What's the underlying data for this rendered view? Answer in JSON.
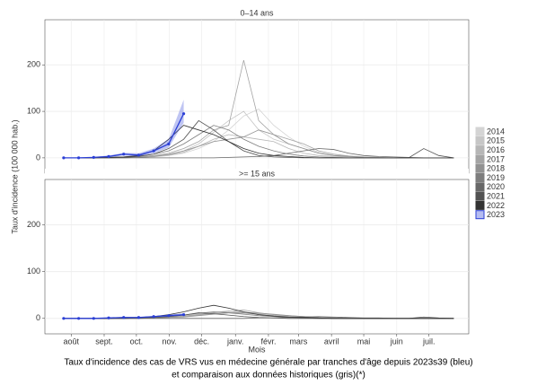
{
  "chart_data": [
    {
      "type": "line",
      "title": "0–14 ans",
      "ylabel": "Taux d'incidence (100 000 hab.)",
      "x": [
        -1,
        1,
        3,
        5,
        7,
        9,
        11,
        13,
        15,
        17,
        19,
        21,
        23,
        25,
        27,
        29,
        31,
        33,
        35,
        37,
        39,
        41,
        43,
        45,
        47,
        49,
        51
      ],
      "xlim": [
        -3.5,
        53
      ],
      "ylim": [
        -33,
        297
      ],
      "yticks": [
        0,
        100,
        200
      ],
      "grid": true,
      "series": [
        {
          "name": "2014",
          "color": "#d4d4d4",
          "values": [
            0,
            0,
            0,
            0,
            0,
            1,
            2,
            5,
            10,
            20,
            35,
            60,
            90,
            105,
            70,
            45,
            25,
            12,
            6,
            3,
            2,
            1,
            0,
            0,
            0,
            0,
            0
          ]
        },
        {
          "name": "2015",
          "color": "#c6c6c6",
          "values": [
            0,
            0,
            0,
            0,
            1,
            2,
            4,
            8,
            15,
            30,
            55,
            80,
            100,
            60,
            40,
            30,
            20,
            10,
            5,
            3,
            2,
            1,
            0,
            0,
            0,
            0,
            0
          ]
        },
        {
          "name": "2016",
          "color": "#b6b6b6",
          "values": [
            0,
            0,
            0,
            0,
            0,
            1,
            3,
            6,
            12,
            25,
            40,
            50,
            45,
            40,
            35,
            20,
            10,
            5,
            3,
            2,
            1,
            0,
            0,
            0,
            0,
            0,
            0
          ]
        },
        {
          "name": "2017",
          "color": "#a4a4a4",
          "values": [
            0,
            0,
            0,
            0,
            1,
            2,
            5,
            10,
            20,
            35,
            60,
            70,
            210,
            80,
            50,
            40,
            30,
            15,
            8,
            4,
            2,
            1,
            0,
            0,
            0,
            0,
            0
          ]
        },
        {
          "name": "2018",
          "color": "#929292",
          "values": [
            0,
            0,
            0,
            0,
            0,
            1,
            3,
            7,
            15,
            25,
            35,
            40,
            45,
            60,
            50,
            30,
            20,
            10,
            5,
            3,
            1,
            0,
            0,
            0,
            0,
            0,
            0
          ]
        },
        {
          "name": "2019",
          "color": "#7e7e7e",
          "values": [
            0,
            0,
            0,
            1,
            2,
            4,
            8,
            15,
            30,
            50,
            70,
            60,
            40,
            25,
            15,
            8,
            4,
            2,
            1,
            0,
            0,
            0,
            0,
            0,
            0,
            0,
            0
          ]
        },
        {
          "name": "2020",
          "color": "#686868",
          "values": [
            0,
            0,
            0,
            0,
            0,
            0,
            0,
            0,
            0,
            0,
            0,
            1,
            2,
            3,
            5,
            10,
            15,
            20,
            18,
            10,
            5,
            3,
            2,
            1,
            0,
            0,
            0
          ]
        },
        {
          "name": "2021",
          "color": "#525252",
          "values": [
            0,
            0,
            0,
            0,
            1,
            3,
            8,
            20,
            40,
            80,
            60,
            35,
            15,
            5,
            2,
            1,
            0,
            0,
            0,
            0,
            0,
            0,
            0,
            0,
            20,
            5,
            0
          ]
        },
        {
          "name": "2022",
          "color": "#333333",
          "values": [
            0,
            0,
            0,
            1,
            2,
            5,
            15,
            40,
            70,
            60,
            50,
            35,
            20,
            10,
            5,
            3,
            1,
            0,
            0,
            0,
            0,
            0,
            0,
            0,
            0,
            0,
            0
          ]
        },
        {
          "name": "2023",
          "color": "#2b3fd6",
          "values": [
            0,
            0,
            1,
            3,
            8,
            6,
            15,
            30,
            95,
            null,
            null,
            null,
            null,
            null,
            null,
            null,
            null,
            null,
            null,
            null,
            null,
            null,
            null,
            null,
            null,
            null,
            null
          ],
          "lower": [
            0,
            0,
            0,
            1,
            5,
            3,
            10,
            22,
            75,
            null,
            null,
            null,
            null,
            null,
            null,
            null,
            null,
            null,
            null,
            null,
            null,
            null,
            null,
            null,
            null,
            null,
            null
          ],
          "upper": [
            0,
            1,
            2,
            5,
            11,
            10,
            20,
            40,
            125,
            null,
            null,
            null,
            null,
            null,
            null,
            null,
            null,
            null,
            null,
            null,
            null,
            null,
            null,
            null,
            null,
            null,
            null
          ]
        }
      ]
    },
    {
      "type": "line",
      "title": ">= 15 ans",
      "xlabel": "Mois",
      "caption": [
        "Taux d'incidence des cas de VRS vus en médecine générale par tranches d'âge depuis 2023s39 (bleu)",
        "et comparaison aux données historiques (gris)(*)"
      ],
      "x": [
        -1,
        1,
        3,
        5,
        7,
        9,
        11,
        13,
        15,
        17,
        19,
        21,
        23,
        25,
        27,
        29,
        31,
        33,
        35,
        37,
        39,
        41,
        43,
        45,
        47,
        49,
        51
      ],
      "xlim": [
        -3.5,
        53
      ],
      "ylim": [
        -33,
        297
      ],
      "yticks": [
        0,
        100,
        200
      ],
      "grid": true,
      "xticks": [
        {
          "value": 0,
          "label": "août"
        },
        {
          "value": 4.4,
          "label": "sept."
        },
        {
          "value": 8.7,
          "label": "oct."
        },
        {
          "value": 13.1,
          "label": "nov."
        },
        {
          "value": 17.4,
          "label": "déc."
        },
        {
          "value": 21.9,
          "label": "janv."
        },
        {
          "value": 26.3,
          "label": "févr."
        },
        {
          "value": 30.3,
          "label": "mars"
        },
        {
          "value": 34.7,
          "label": "avril"
        },
        {
          "value": 39,
          "label": "mai"
        },
        {
          "value": 43.4,
          "label": "juin"
        },
        {
          "value": 47.7,
          "label": "juil."
        }
      ],
      "series": [
        {
          "name": "2014",
          "color": "#d4d4d4",
          "values": [
            0,
            0,
            0,
            0,
            0,
            0,
            1,
            2,
            4,
            8,
            12,
            15,
            14,
            10,
            7,
            5,
            3,
            2,
            1,
            1,
            0,
            0,
            0,
            0,
            0,
            0,
            0
          ]
        },
        {
          "name": "2015",
          "color": "#c6c6c6",
          "values": [
            0,
            0,
            0,
            0,
            0,
            1,
            1,
            3,
            5,
            9,
            13,
            16,
            12,
            8,
            6,
            4,
            3,
            2,
            1,
            0,
            0,
            0,
            0,
            0,
            0,
            0,
            0
          ]
        },
        {
          "name": "2016",
          "color": "#b6b6b6",
          "values": [
            0,
            0,
            0,
            0,
            0,
            0,
            1,
            2,
            4,
            7,
            10,
            12,
            11,
            9,
            6,
            4,
            2,
            1,
            1,
            0,
            0,
            0,
            0,
            0,
            0,
            0,
            0
          ]
        },
        {
          "name": "2017",
          "color": "#a4a4a4",
          "values": [
            0,
            0,
            0,
            0,
            0,
            1,
            2,
            3,
            5,
            8,
            12,
            15,
            18,
            12,
            8,
            6,
            4,
            2,
            1,
            0,
            0,
            0,
            0,
            0,
            0,
            0,
            0
          ]
        },
        {
          "name": "2018",
          "color": "#929292",
          "values": [
            0,
            0,
            0,
            0,
            0,
            0,
            1,
            2,
            3,
            6,
            9,
            12,
            13,
            11,
            9,
            6,
            4,
            2,
            1,
            0,
            0,
            0,
            0,
            0,
            0,
            0,
            0
          ]
        },
        {
          "name": "2019",
          "color": "#7e7e7e",
          "values": [
            0,
            0,
            0,
            0,
            0,
            1,
            2,
            4,
            7,
            11,
            14,
            12,
            9,
            6,
            4,
            2,
            1,
            0,
            0,
            0,
            0,
            0,
            0,
            0,
            0,
            0,
            0
          ]
        },
        {
          "name": "2020",
          "color": "#686868",
          "values": [
            0,
            0,
            0,
            0,
            0,
            0,
            0,
            0,
            0,
            0,
            0,
            0,
            0,
            1,
            1,
            2,
            3,
            4,
            3,
            2,
            1,
            1,
            0,
            0,
            0,
            0,
            0
          ]
        },
        {
          "name": "2021",
          "color": "#525252",
          "values": [
            0,
            0,
            0,
            0,
            0,
            1,
            2,
            4,
            7,
            12,
            10,
            7,
            4,
            2,
            1,
            0,
            0,
            0,
            0,
            0,
            0,
            0,
            0,
            0,
            3,
            1,
            0
          ]
        },
        {
          "name": "2022",
          "color": "#333333",
          "values": [
            0,
            0,
            0,
            0,
            1,
            2,
            4,
            8,
            14,
            22,
            28,
            22,
            14,
            8,
            5,
            3,
            2,
            1,
            0,
            0,
            0,
            0,
            0,
            0,
            0,
            0,
            0
          ]
        },
        {
          "name": "2023",
          "color": "#2b3fd6",
          "values": [
            0,
            0,
            0,
            1,
            2,
            2,
            4,
            6,
            8,
            null,
            null,
            null,
            null,
            null,
            null,
            null,
            null,
            null,
            null,
            null,
            null,
            null,
            null,
            null,
            null,
            null,
            null
          ],
          "lower": [
            0,
            0,
            0,
            0,
            1,
            1,
            3,
            4,
            6,
            null,
            null,
            null,
            null,
            null,
            null,
            null,
            null,
            null,
            null,
            null,
            null,
            null,
            null,
            null,
            null,
            null,
            null
          ],
          "upper": [
            0,
            0,
            1,
            2,
            3,
            3,
            5,
            8,
            11,
            null,
            null,
            null,
            null,
            null,
            null,
            null,
            null,
            null,
            null,
            null,
            null,
            null,
            null,
            null,
            null,
            null,
            null
          ]
        }
      ]
    }
  ]
}
